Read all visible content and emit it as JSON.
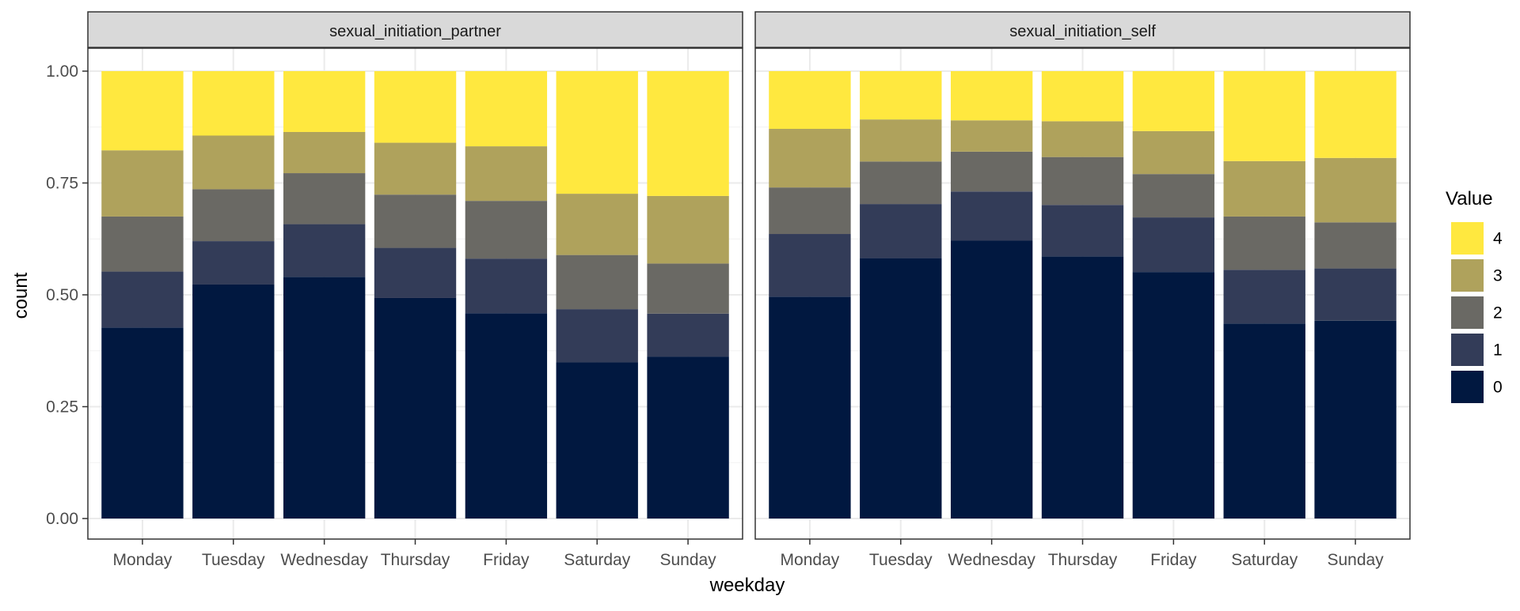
{
  "chart_data": {
    "type": "bar",
    "stacked": true,
    "position": "fill",
    "xlabel": "weekday",
    "ylabel": "count",
    "ylim": [
      0,
      1
    ],
    "yticks": [
      "0.00",
      "0.25",
      "0.50",
      "0.75",
      "1.00"
    ],
    "categories": [
      "Monday",
      "Tuesday",
      "Wednesday",
      "Thursday",
      "Friday",
      "Saturday",
      "Sunday"
    ],
    "legend": {
      "title": "Value",
      "placement": "right",
      "items": [
        {
          "label": "4",
          "color": "#FFE83F"
        },
        {
          "label": "3",
          "color": "#AFA25C"
        },
        {
          "label": "2",
          "color": "#6A6964"
        },
        {
          "label": "1",
          "color": "#333C58"
        },
        {
          "label": "0",
          "color": "#011840"
        }
      ]
    },
    "facets": [
      {
        "title": "sexual_initiation_partner",
        "series": [
          {
            "name": "0",
            "values": [
              0.427,
              0.523,
              0.54,
              0.493,
              0.459,
              0.349,
              0.362
            ]
          },
          {
            "name": "1",
            "values": [
              0.125,
              0.097,
              0.118,
              0.112,
              0.122,
              0.119,
              0.096
            ]
          },
          {
            "name": "2",
            "values": [
              0.123,
              0.116,
              0.114,
              0.119,
              0.129,
              0.121,
              0.112
            ]
          },
          {
            "name": "3",
            "values": [
              0.148,
              0.12,
              0.092,
              0.116,
              0.122,
              0.137,
              0.151
            ]
          },
          {
            "name": "4",
            "values": [
              0.177,
              0.144,
              0.136,
              0.16,
              0.168,
              0.274,
              0.279
            ]
          }
        ]
      },
      {
        "title": "sexual_initiation_self",
        "series": [
          {
            "name": "0",
            "values": [
              0.496,
              0.582,
              0.621,
              0.586,
              0.551,
              0.436,
              0.442
            ]
          },
          {
            "name": "1",
            "values": [
              0.14,
              0.121,
              0.11,
              0.115,
              0.122,
              0.12,
              0.117
            ]
          },
          {
            "name": "2",
            "values": [
              0.104,
              0.095,
              0.089,
              0.107,
              0.097,
              0.119,
              0.103
            ]
          },
          {
            "name": "3",
            "values": [
              0.131,
              0.094,
              0.07,
              0.08,
              0.096,
              0.124,
              0.144
            ]
          },
          {
            "name": "4",
            "values": [
              0.129,
              0.108,
              0.11,
              0.112,
              0.134,
              0.201,
              0.194
            ]
          }
        ]
      }
    ]
  }
}
